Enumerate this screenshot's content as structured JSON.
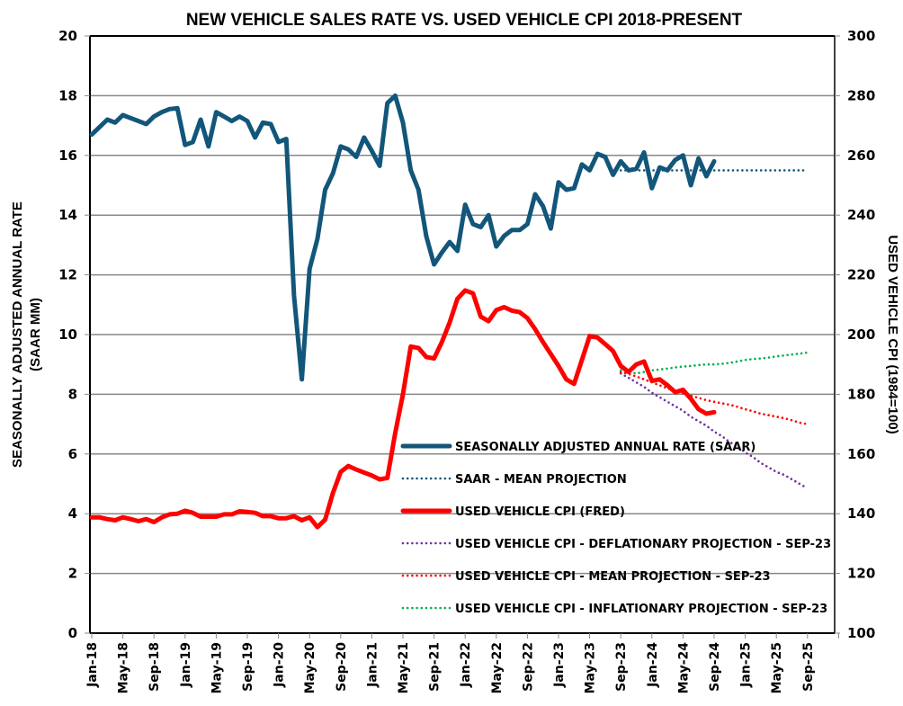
{
  "chart_data": {
    "type": "line",
    "title": "NEW VEHICLE SALES RATE VS. USED VEHICLE CPI 2018-PRESENT",
    "xlabel": "",
    "ylabel": "SEASONALLY ADJUSTED ANNUAL RATE\n(SAAR MM)",
    "y2label": "USED VEHICLE CPI (1984=100)",
    "ylim": [
      0,
      20
    ],
    "y2lim": [
      100,
      300
    ],
    "yticks": [
      0,
      2,
      4,
      6,
      8,
      10,
      12,
      14,
      16,
      18,
      20
    ],
    "y2ticks": [
      100,
      120,
      140,
      160,
      180,
      200,
      220,
      240,
      260,
      280,
      300
    ],
    "x_start": "Jan-18",
    "x_end": "Dec-25",
    "xtick_labels": [
      "Jan-18",
      "May-18",
      "Sep-18",
      "Jan-19",
      "May-19",
      "Sep-19",
      "Jan-20",
      "May-20",
      "Sep-20",
      "Jan-21",
      "May-21",
      "Sep-21",
      "Jan-22",
      "May-22",
      "Sep-22",
      "Jan-23",
      "May-23",
      "Sep-23",
      "Jan-24",
      "May-24",
      "Sep-24",
      "Jan-25",
      "May-25",
      "Sep-25"
    ],
    "grid": true,
    "legend_position": "bottom-right",
    "series": [
      {
        "name": "SEASONALLY ADJUSTED ANNUAL RATE (SAAR)",
        "axis": "left",
        "color": "#12567A",
        "style": "solid-thick",
        "start_month_index": 0,
        "values": [
          16.7,
          16.95,
          17.2,
          17.1,
          17.35,
          17.25,
          17.15,
          17.05,
          17.3,
          17.45,
          17.55,
          17.58,
          16.35,
          16.45,
          17.2,
          16.3,
          17.45,
          17.3,
          17.15,
          17.3,
          17.15,
          16.6,
          17.1,
          17.05,
          16.45,
          16.55,
          11.3,
          8.5,
          12.2,
          13.2,
          14.85,
          15.4,
          16.3,
          16.2,
          15.95,
          16.6,
          16.15,
          15.65,
          17.75,
          18.0,
          17.1,
          15.5,
          14.85,
          13.3,
          12.35,
          12.75,
          13.1,
          12.8,
          14.35,
          13.7,
          13.6,
          14.0,
          12.95,
          13.3,
          13.5,
          13.5,
          13.7,
          14.7,
          14.3,
          13.55,
          15.1,
          14.85,
          14.9,
          15.7,
          15.5,
          16.05,
          15.95,
          15.35,
          15.8,
          15.5,
          15.55,
          16.1,
          14.9,
          15.6,
          15.5,
          15.85,
          16.0,
          15.0,
          15.9,
          15.3,
          15.8
        ]
      },
      {
        "name": "SAAR - MEAN PROJECTION",
        "axis": "left",
        "color": "#12567A",
        "style": "dotted",
        "start_month_index": 68,
        "values": [
          15.5,
          15.5,
          15.5,
          15.5,
          15.5,
          15.5,
          15.5,
          15.5,
          15.5,
          15.5,
          15.5,
          15.5,
          15.5,
          15.5,
          15.5,
          15.5,
          15.5,
          15.5,
          15.5,
          15.5,
          15.5,
          15.5,
          15.5,
          15.5,
          15.5
        ]
      },
      {
        "name": "USED VEHICLE CPI (FRED)",
        "axis": "right",
        "color": "#FF0000",
        "style": "solid-thick",
        "start_month_index": 0,
        "values": [
          138.8,
          138.8,
          138.2,
          137.8,
          138.8,
          138.2,
          137.5,
          138.2,
          137.2,
          138.8,
          139.8,
          140.0,
          141.0,
          140.3,
          139.0,
          139.0,
          139.0,
          139.8,
          139.8,
          140.8,
          140.6,
          140.3,
          139.2,
          139.2,
          138.5,
          138.5,
          139.2,
          137.8,
          138.8,
          135.5,
          138.0,
          147.0,
          154.0,
          156.0,
          154.8,
          153.8,
          152.8,
          151.5,
          152.0,
          167.0,
          180.0,
          196.0,
          195.5,
          192.5,
          192.0,
          197.5,
          204.0,
          212.0,
          214.8,
          213.8,
          206.0,
          204.5,
          208.2,
          209.2,
          208.0,
          207.5,
          205.5,
          201.8,
          197.5,
          193.5,
          189.5,
          185.0,
          183.5,
          191.5,
          199.5,
          199.0,
          196.8,
          194.5,
          189.5,
          187.5,
          190.0,
          191.0,
          184.5,
          185.0,
          183.0,
          180.7,
          181.5,
          178.5,
          175.0,
          173.5,
          174.0
        ]
      },
      {
        "name": "USED VEHICLE CPI - DEFLATIONARY PROJECTION - SEP-23",
        "axis": "right",
        "color": "#7030A0",
        "style": "dotted",
        "start_month_index": 68,
        "values": [
          187.0,
          185.5,
          184.0,
          182.5,
          180.5,
          179.0,
          177.5,
          176.0,
          174.5,
          172.5,
          171.0,
          169.5,
          167.5,
          166.0,
          164.0,
          162.5,
          160.5,
          159.0,
          157.0,
          155.5,
          154.0,
          153.0,
          151.5,
          150.0,
          148.5
        ]
      },
      {
        "name": "USED VEHICLE CPI - MEAN PROJECTION - SEP-23",
        "axis": "right",
        "color": "#FF0000",
        "style": "dotted",
        "start_month_index": 68,
        "values": [
          187.5,
          186.8,
          186.0,
          185.0,
          184.0,
          183.0,
          182.0,
          181.0,
          180.3,
          179.5,
          178.8,
          178.0,
          177.5,
          177.0,
          176.5,
          175.8,
          175.0,
          174.3,
          173.5,
          173.0,
          172.5,
          172.0,
          171.3,
          170.5,
          170.0
        ]
      },
      {
        "name": "USED VEHICLE CPI - INFLATIONARY PROJECTION - SEP-23",
        "axis": "right",
        "color": "#00B050",
        "style": "dotted",
        "start_month_index": 68,
        "values": [
          188.0,
          187.5,
          187.0,
          187.5,
          188.0,
          188.3,
          188.6,
          189.0,
          189.3,
          189.5,
          189.8,
          190.0,
          190.0,
          190.2,
          190.5,
          191.0,
          191.5,
          191.8,
          192.0,
          192.3,
          192.7,
          193.0,
          193.3,
          193.6,
          194.0
        ]
      }
    ]
  }
}
